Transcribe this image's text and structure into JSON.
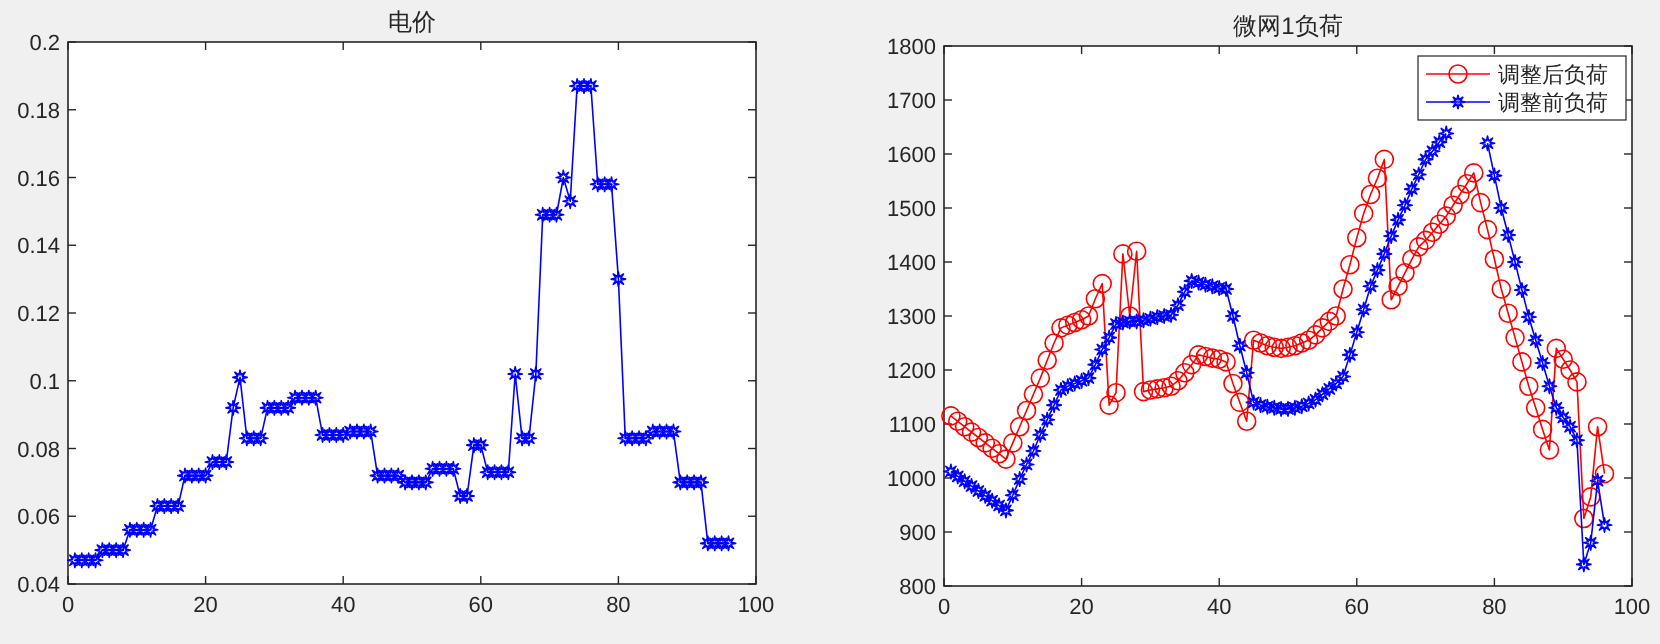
{
  "chart_data": [
    {
      "type": "line",
      "title": "电价",
      "x": [
        1,
        2,
        3,
        4,
        5,
        6,
        7,
        8,
        9,
        10,
        11,
        12,
        13,
        14,
        15,
        16,
        17,
        18,
        19,
        20,
        21,
        22,
        23,
        24,
        25,
        26,
        27,
        28,
        29,
        30,
        31,
        32,
        33,
        34,
        35,
        36,
        37,
        38,
        39,
        40,
        41,
        42,
        43,
        44,
        45,
        46,
        47,
        48,
        49,
        50,
        51,
        52,
        53,
        54,
        55,
        56,
        57,
        58,
        59,
        60,
        61,
        62,
        63,
        64,
        65,
        66,
        67,
        68,
        69,
        70,
        71,
        72,
        73,
        74,
        75,
        76,
        77,
        78,
        79,
        80,
        81,
        82,
        83,
        84,
        85,
        86,
        87,
        88,
        89,
        90,
        91,
        92,
        93,
        94,
        95,
        96
      ],
      "series": [
        {
          "color": "#0000ff",
          "marker": "star",
          "values": [
            0.047,
            0.047,
            0.047,
            0.047,
            0.05,
            0.05,
            0.05,
            0.05,
            0.056,
            0.056,
            0.056,
            0.056,
            0.063,
            0.063,
            0.063,
            0.063,
            0.072,
            0.072,
            0.072,
            0.072,
            0.076,
            0.076,
            0.076,
            0.092,
            0.101,
            0.083,
            0.083,
            0.083,
            0.092,
            0.092,
            0.092,
            0.092,
            0.095,
            0.095,
            0.095,
            0.095,
            0.084,
            0.084,
            0.084,
            0.084,
            0.085,
            0.085,
            0.085,
            0.085,
            0.072,
            0.072,
            0.072,
            0.072,
            0.07,
            0.07,
            0.07,
            0.07,
            0.074,
            0.074,
            0.074,
            0.074,
            0.066,
            0.066,
            0.081,
            0.081,
            0.073,
            0.073,
            0.073,
            0.073,
            0.102,
            0.083,
            0.083,
            0.102,
            0.149,
            0.149,
            0.149,
            0.16,
            0.153,
            0.187,
            0.187,
            0.187,
            0.158,
            0.158,
            0.158,
            0.13,
            0.083,
            0.083,
            0.083,
            0.083,
            0.085,
            0.085,
            0.085,
            0.085,
            0.07,
            0.07,
            0.07,
            0.07,
            0.052,
            0.052,
            0.052,
            0.052
          ]
        }
      ],
      "xlim": [
        0,
        100
      ],
      "xticks": [
        0,
        20,
        40,
        60,
        80,
        100
      ],
      "ylim": [
        0.04,
        0.2
      ],
      "yticks": [
        0.04,
        0.06,
        0.08,
        0.1,
        0.12,
        0.14,
        0.16,
        0.18,
        0.2
      ]
    },
    {
      "type": "line",
      "title": "微网1负荷",
      "x": [
        1,
        2,
        3,
        4,
        5,
        6,
        7,
        8,
        9,
        10,
        11,
        12,
        13,
        14,
        15,
        16,
        17,
        18,
        19,
        20,
        21,
        22,
        23,
        24,
        25,
        26,
        27,
        28,
        29,
        30,
        31,
        32,
        33,
        34,
        35,
        36,
        37,
        38,
        39,
        40,
        41,
        42,
        43,
        44,
        45,
        46,
        47,
        48,
        49,
        50,
        51,
        52,
        53,
        54,
        55,
        56,
        57,
        58,
        59,
        60,
        61,
        62,
        63,
        64,
        65,
        66,
        67,
        68,
        69,
        70,
        71,
        72,
        73,
        74,
        75,
        76,
        77,
        78,
        79,
        80,
        81,
        82,
        83,
        84,
        85,
        86,
        87,
        88,
        89,
        90,
        91,
        92,
        93,
        94,
        95,
        96
      ],
      "series": [
        {
          "name": "调整后负荷",
          "color": "#ff0000",
          "marker": "circle",
          "values": [
            1115,
            1105,
            1095,
            1085,
            1075,
            1065,
            1055,
            1045,
            1035,
            1065,
            1095,
            1125,
            1155,
            1185,
            1218,
            1250,
            1278,
            1283,
            1288,
            1293,
            1300,
            1332,
            1360,
            1135,
            1158,
            1415,
            1300,
            1420,
            1160,
            1163,
            1165,
            1167,
            1170,
            1180,
            1195,
            1210,
            1228,
            1225,
            1222,
            1220,
            1215,
            1175,
            1140,
            1105,
            1255,
            1250,
            1245,
            1242,
            1240,
            1242,
            1245,
            1250,
            1255,
            1265,
            1278,
            1290,
            1300,
            1350,
            1395,
            1445,
            1490,
            1525,
            1555,
            1590,
            1330,
            1355,
            1380,
            1405,
            1428,
            1440,
            1455,
            1470,
            1485,
            1505,
            1525,
            1545,
            1565,
            1510,
            1460,
            1405,
            1350,
            1305,
            1260,
            1215,
            1170,
            1130,
            1090,
            1052,
            1240,
            1220,
            1200,
            1178,
            925,
            965,
            1095,
            1008
          ]
        },
        {
          "name": "调整前负荷",
          "color": "#0000ff",
          "marker": "star",
          "values": [
            1012,
            1003,
            994,
            985,
            976,
            967,
            958,
            949,
            940,
            968,
            998,
            1025,
            1050,
            1080,
            1108,
            1135,
            1163,
            1170,
            1175,
            1180,
            1185,
            1210,
            1238,
            1260,
            1285,
            1288,
            1290,
            1290,
            1292,
            1295,
            1298,
            1300,
            1302,
            1320,
            1345,
            1365,
            1362,
            1358,
            1355,
            1352,
            1350,
            1300,
            1245,
            1195,
            1140,
            1135,
            1132,
            1130,
            1128,
            1128,
            1130,
            1133,
            1138,
            1145,
            1155,
            1165,
            1175,
            1188,
            1228,
            1270,
            1312,
            1355,
            1385,
            1415,
            1448,
            1478,
            1505,
            1535,
            1562,
            1590,
            1605,
            1622,
            1638,
            null,
            null,
            null,
            null,
            null,
            1620,
            1560,
            1500,
            1450,
            1400,
            1348,
            1298,
            1255,
            1213,
            1170,
            1130,
            1112,
            1095,
            1070,
            840,
            880,
            995,
            913
          ]
        }
      ],
      "xlim": [
        0,
        100
      ],
      "xticks": [
        0,
        20,
        40,
        60,
        80,
        100
      ],
      "ylim": [
        800,
        1800
      ],
      "yticks": [
        800,
        900,
        1000,
        1100,
        1200,
        1300,
        1400,
        1500,
        1600,
        1700,
        1800
      ],
      "legend": "top right",
      "tick_labels": true
    }
  ]
}
